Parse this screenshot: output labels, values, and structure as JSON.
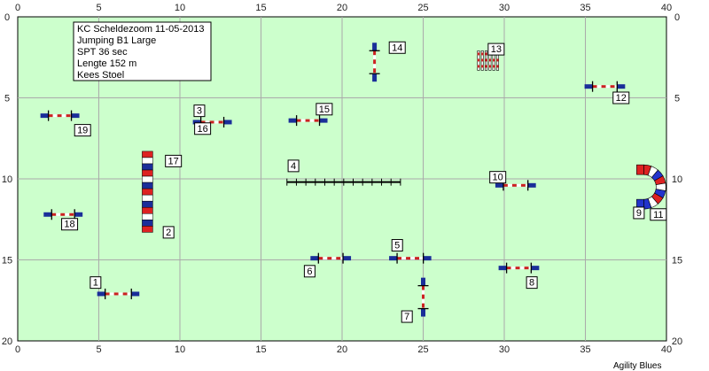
{
  "course": {
    "x_range": [
      0,
      40
    ],
    "y_range": [
      0,
      20
    ],
    "grid": true,
    "x_ticks": [
      0,
      5,
      10,
      15,
      20,
      25,
      30,
      35,
      40
    ],
    "y_ticks": [
      0,
      5,
      10,
      15,
      20
    ],
    "x_tick_labels": [
      "0",
      "5",
      "10",
      "15",
      "20",
      "25",
      "30",
      "35",
      "40"
    ],
    "y_tick_labels": [
      "0",
      "5",
      "10",
      "15",
      "20"
    ],
    "info_lines": [
      "KC Scheldezoom 11-05-2013",
      "Jumping B1 Large",
      "SPT 36 sec",
      "Lengte 152 m",
      "Kees Stoel"
    ],
    "footer": "Agility Blues",
    "colors": {
      "field": "#ccffcc",
      "grid": "#aaaaaa",
      "bar_red": "#cc2222",
      "bar_white": "#ffffff",
      "wing_blue": "#1a2e99",
      "tunnel_red": "#dd2222",
      "tunnel_blue": "#2233cc"
    }
  },
  "obstacles": [
    {
      "number": "1",
      "type": "hurdle",
      "x": 6.2,
      "y": 17.1,
      "angle": 0,
      "len": 2.6,
      "label_x": 4.8,
      "label_y": 16.4
    },
    {
      "number": "2",
      "type": "wall",
      "x": 8.0,
      "y": 10.8,
      "angle": 90,
      "len": 5.0,
      "label_x": 9.3,
      "label_y": 13.3
    },
    {
      "number": "3",
      "type": "hurdle",
      "x": 12.0,
      "y": 6.5,
      "angle": 0,
      "len": 2.4,
      "label_x": 11.2,
      "label_y": 5.8
    },
    {
      "number": "4",
      "type": "dogwalk",
      "x": 20.1,
      "y": 10.2,
      "angle": 0,
      "len": 7.0,
      "label_x": 17.0,
      "label_y": 9.2
    },
    {
      "number": "5",
      "type": "hurdle",
      "x": 24.2,
      "y": 14.9,
      "angle": 0,
      "len": 2.6,
      "label_x": 23.4,
      "label_y": 14.1
    },
    {
      "number": "6",
      "type": "hurdle",
      "x": 19.3,
      "y": 14.9,
      "angle": 0,
      "len": 2.5,
      "label_x": 18.0,
      "label_y": 15.7
    },
    {
      "number": "7",
      "type": "hurdle",
      "x": 25.0,
      "y": 17.3,
      "angle": 90,
      "len": 2.4,
      "label_x": 24.0,
      "label_y": 18.5
    },
    {
      "number": "8",
      "type": "hurdle",
      "x": 30.9,
      "y": 15.5,
      "angle": 0,
      "len": 2.5,
      "label_x": 31.7,
      "label_y": 16.4
    },
    {
      "number": "9",
      "type": "tunnel",
      "x": 38.6,
      "y": 10.5,
      "angle": 0,
      "len": 1.0,
      "label_x": 38.3,
      "label_y": 12.1
    },
    {
      "number": "10",
      "type": "hurdle",
      "x": 30.7,
      "y": 10.4,
      "angle": 0,
      "len": 2.5,
      "label_x": 29.6,
      "label_y": 9.9
    },
    {
      "number": "11",
      "type": "tunnel",
      "x": 0,
      "y": 0,
      "angle": 0,
      "len": 0,
      "label_x": 39.5,
      "label_y": 12.2
    },
    {
      "number": "12",
      "type": "hurdle",
      "x": 36.2,
      "y": 4.3,
      "angle": 0,
      "len": 2.5,
      "label_x": 37.2,
      "label_y": 5.0
    },
    {
      "number": "13",
      "type": "weave",
      "x": 29.0,
      "y": 2.7,
      "angle": 0,
      "len": 1.2,
      "label_x": 29.5,
      "label_y": 2.0
    },
    {
      "number": "14",
      "type": "hurdle",
      "x": 22.0,
      "y": 2.8,
      "angle": 90,
      "len": 2.4,
      "label_x": 23.4,
      "label_y": 1.9
    },
    {
      "number": "15",
      "type": "hurdle",
      "x": 17.9,
      "y": 6.4,
      "angle": 0,
      "len": 2.4,
      "label_x": 18.9,
      "label_y": 5.7
    },
    {
      "number": "16",
      "type": "hurdle",
      "x": 0,
      "y": 0,
      "angle": 0,
      "len": 0,
      "label_x": 11.4,
      "label_y": 6.9
    },
    {
      "number": "17",
      "type": "wall",
      "x": 0,
      "y": 0,
      "angle": 0,
      "len": 0,
      "label_x": 9.6,
      "label_y": 8.9
    },
    {
      "number": "18",
      "type": "hurdle",
      "x": 2.8,
      "y": 12.2,
      "angle": 0,
      "len": 2.4,
      "label_x": 3.2,
      "label_y": 12.8
    },
    {
      "number": "19",
      "type": "hurdle",
      "x": 2.6,
      "y": 6.1,
      "angle": 0,
      "len": 2.4,
      "label_x": 4.0,
      "label_y": 7.0
    }
  ]
}
